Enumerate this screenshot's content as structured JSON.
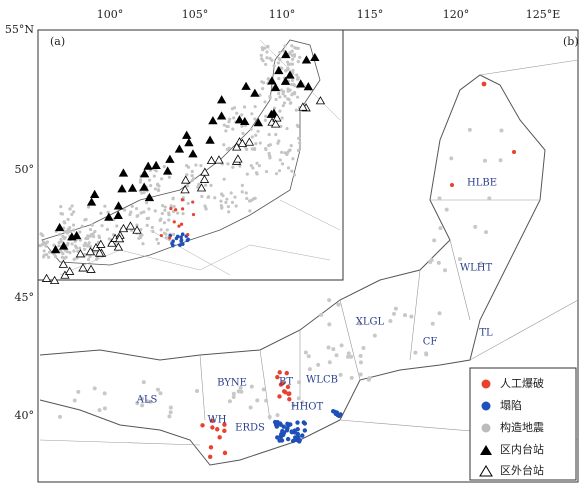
{
  "map": {
    "panel_labels": [
      "(a)",
      "(b)"
    ],
    "longitude_labels": [
      "100°",
      "105°",
      "110°",
      "115°",
      "120°",
      "125°E"
    ],
    "latitude_labels": [
      "55°N",
      "50°",
      "45°",
      "40°"
    ],
    "regions": [
      "HLBE",
      "WLHT",
      "XLGL",
      "CF",
      "TL",
      "ALS",
      "BYNE",
      "BT",
      "WLCB",
      "HHOT",
      "WH",
      "ERDS"
    ],
    "legend": [
      "人工爆破",
      "塌陷",
      "构造地震",
      "区内台站",
      "区外台站"
    ]
  }
}
